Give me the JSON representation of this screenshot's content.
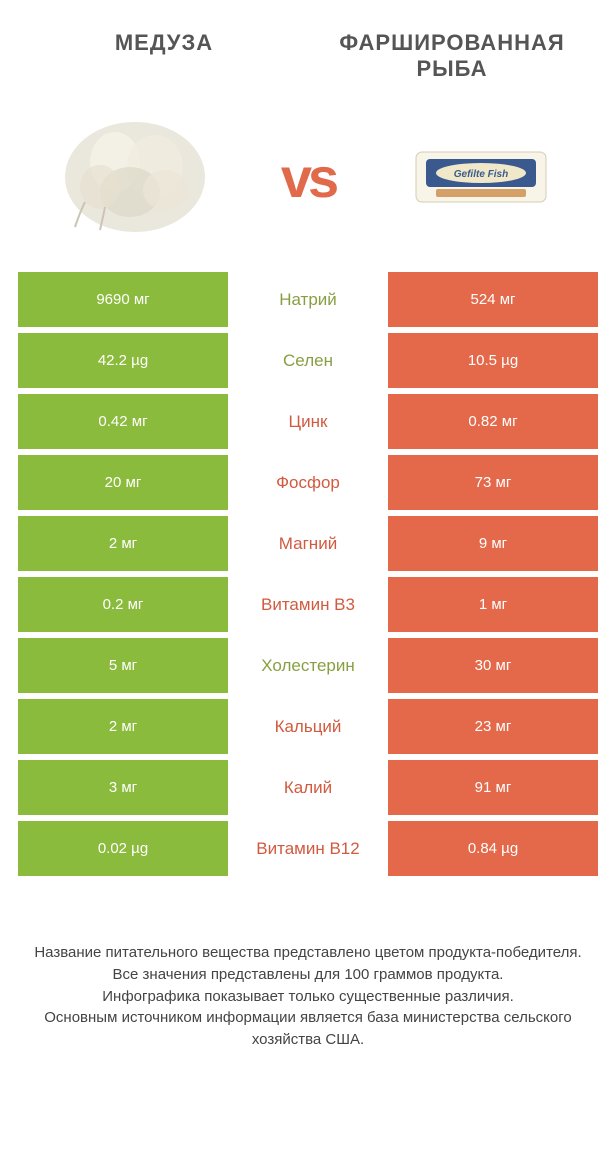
{
  "header": {
    "left_title": "МЕДУЗА",
    "right_title": "ФАРШИРОВАННАЯ РЫБА"
  },
  "vs": "vs",
  "colors": {
    "green": "#8bbb3c",
    "orange": "#e4694b",
    "green_text": "#879f42",
    "orange_text": "#d15a3f"
  },
  "rows": [
    {
      "left": "9690 мг",
      "label": "Натрий",
      "right": "524 мг",
      "winner": "left"
    },
    {
      "left": "42.2 µg",
      "label": "Селен",
      "right": "10.5 µg",
      "winner": "left"
    },
    {
      "left": "0.42 мг",
      "label": "Цинк",
      "right": "0.82 мг",
      "winner": "right"
    },
    {
      "left": "20 мг",
      "label": "Фосфор",
      "right": "73 мг",
      "winner": "right"
    },
    {
      "left": "2 мг",
      "label": "Магний",
      "right": "9 мг",
      "winner": "right"
    },
    {
      "left": "0.2 мг",
      "label": "Витамин B3",
      "right": "1 мг",
      "winner": "right"
    },
    {
      "left": "5 мг",
      "label": "Холестерин",
      "right": "30 мг",
      "winner": "left"
    },
    {
      "left": "2 мг",
      "label": "Кальций",
      "right": "23 мг",
      "winner": "right"
    },
    {
      "left": "3 мг",
      "label": "Калий",
      "right": "91 мг",
      "winner": "right"
    },
    {
      "left": "0.02 µg",
      "label": "Витамин B12",
      "right": "0.84 µg",
      "winner": "right"
    }
  ],
  "footer": "Название питательного вещества представлено цветом продукта-победителя.\nВсе значения представлены для 100 граммов продукта.\nИнфографика показывает только существенные различия.\nОсновным источником информации является база министерства сельского хозяйства США."
}
